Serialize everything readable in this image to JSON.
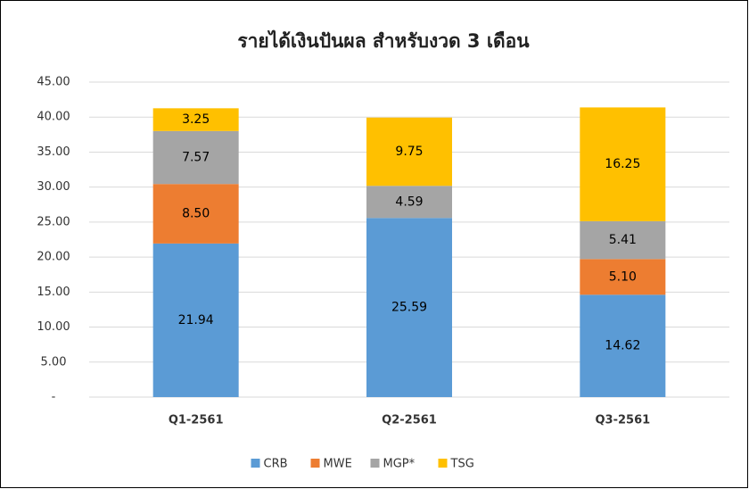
{
  "chart_data": {
    "type": "stacked_bar",
    "title": "รายได้เงินปันผล สำหรับงวด 3 เดือน",
    "categories": [
      "Q1-2561",
      "Q2-2561",
      "Q3-2561"
    ],
    "series": [
      {
        "name": "CRB",
        "color": "#5b9bd5",
        "values": [
          21.94,
          25.59,
          14.62
        ],
        "value_labels": [
          "21.94",
          "25.59",
          "14.62"
        ]
      },
      {
        "name": "MWE",
        "color": "#ed7d31",
        "values": [
          8.5,
          null,
          5.1
        ],
        "value_labels": [
          "8.50",
          null,
          "5.10"
        ]
      },
      {
        "name": "MGP*",
        "color": "#a5a5a5",
        "values": [
          7.57,
          4.59,
          5.41
        ],
        "value_labels": [
          "7.57",
          "4.59",
          "5.41"
        ]
      },
      {
        "name": "TSG",
        "color": "#ffc000",
        "values": [
          3.25,
          9.75,
          16.25
        ],
        "value_labels": [
          "3.25",
          "9.75",
          "16.25"
        ]
      }
    ],
    "ylim": [
      0,
      45
    ],
    "yticks": [
      {
        "value": 0,
        "label": "-"
      },
      {
        "value": 5,
        "label": "5.00"
      },
      {
        "value": 10,
        "label": "10.00"
      },
      {
        "value": 15,
        "label": "15.00"
      },
      {
        "value": 20,
        "label": "20.00"
      },
      {
        "value": 25,
        "label": "25.00"
      },
      {
        "value": 30,
        "label": "30.00"
      },
      {
        "value": 35,
        "label": "35.00"
      },
      {
        "value": 40,
        "label": "40.00"
      },
      {
        "value": 45,
        "label": "45.00"
      }
    ],
    "grid": true,
    "legend": "bottom"
  }
}
